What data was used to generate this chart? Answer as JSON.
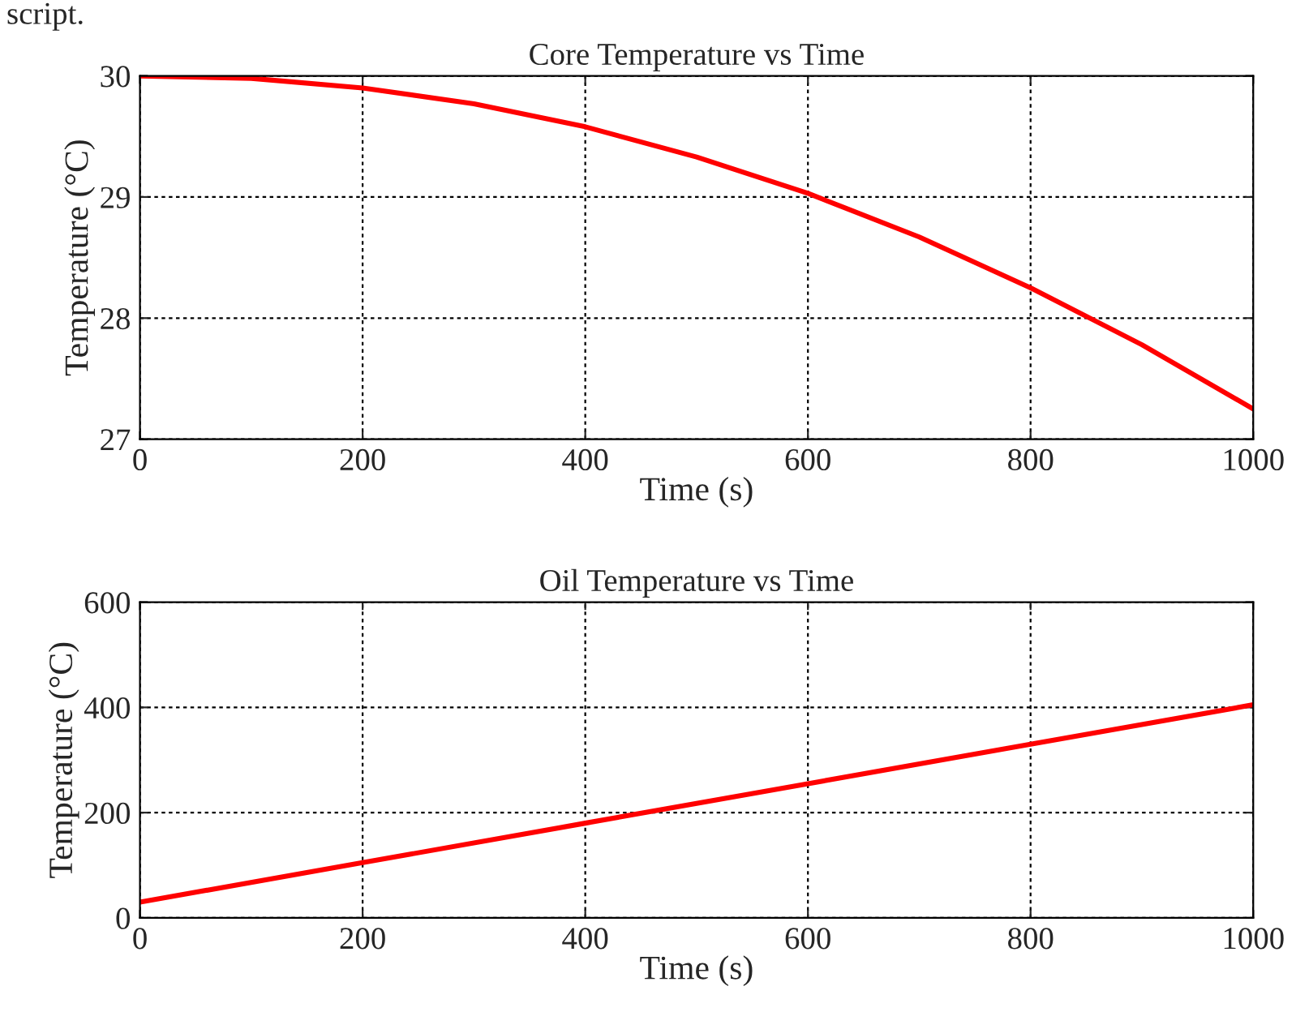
{
  "chart_data": [
    {
      "type": "line",
      "title": "Core Temperature vs Time",
      "xlabel": "Time (s)",
      "ylabel": "Temperature (°C)",
      "annotations": [
        "script."
      ],
      "x": [
        0,
        100,
        200,
        300,
        400,
        500,
        600,
        700,
        800,
        900,
        1000
      ],
      "series": [
        {
          "color": "#ff0000",
          "values": [
            30,
            29.98,
            29.9,
            29.77,
            29.58,
            29.33,
            29.03,
            28.67,
            28.25,
            27.78,
            27.25
          ]
        }
      ],
      "xlim": [
        0,
        1000
      ],
      "xticks": [
        0,
        200,
        400,
        600,
        800,
        1000
      ],
      "ylim": [
        27,
        30
      ],
      "yticks": [
        27,
        28,
        29,
        30
      ],
      "grid": true,
      "line_style": "solid"
    },
    {
      "type": "line",
      "title": "Oil Temperature vs Time",
      "xlabel": "Time (s)",
      "ylabel": "Temperature (°C)",
      "x": [
        0,
        200,
        400,
        600,
        800,
        1000
      ],
      "series": [
        {
          "color": "#ff0000",
          "values": [
            30,
            105,
            180,
            255,
            330,
            405
          ]
        }
      ],
      "xlim": [
        0,
        1000
      ],
      "xticks": [
        0,
        200,
        400,
        600,
        800,
        1000
      ],
      "ylim": [
        0,
        600
      ],
      "yticks": [
        0,
        200,
        400,
        600
      ],
      "grid": true,
      "line_style": "solid"
    }
  ]
}
